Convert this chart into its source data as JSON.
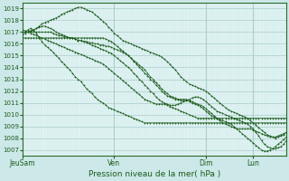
{
  "title": "Pression niveau de la mer( hPa )",
  "bg_color": "#cce8e8",
  "plot_bg_color": "#dff2f2",
  "grid_color_major": "#aacccc",
  "grid_color_minor": "#c8e4e4",
  "line_color": "#1a5c1a",
  "ylim": [
    1006.5,
    1019.5
  ],
  "yticks": [
    1007,
    1008,
    1009,
    1010,
    1011,
    1012,
    1013,
    1014,
    1015,
    1016,
    1017,
    1018,
    1019
  ],
  "xtick_labels": [
    "JeuSam",
    "Ven",
    "Dim",
    "Lun"
  ],
  "xtick_positions": [
    0,
    33,
    66,
    83
  ],
  "total_points": 96,
  "lines": [
    [
      1016.8,
      1016.9,
      1017.0,
      1017.1,
      1017.2,
      1017.3,
      1017.4,
      1017.5,
      1017.5,
      1017.4,
      1017.3,
      1017.2,
      1017.0,
      1016.9,
      1016.8,
      1016.7,
      1016.6,
      1016.5,
      1016.5,
      1016.4,
      1016.3,
      1016.3,
      1016.2,
      1016.2,
      1016.1,
      1016.1,
      1016.0,
      1016.0,
      1015.9,
      1015.9,
      1015.8,
      1015.8,
      1015.7,
      1015.6,
      1015.5,
      1015.4,
      1015.3,
      1015.2,
      1015.0,
      1014.8,
      1014.6,
      1014.4,
      1014.2,
      1014.0,
      1013.8,
      1013.5,
      1013.2,
      1013.0,
      1012.7,
      1012.5,
      1012.2,
      1012.0,
      1011.8,
      1011.6,
      1011.5,
      1011.4,
      1011.3,
      1011.2,
      1011.2,
      1011.2,
      1011.3,
      1011.4,
      1011.5,
      1011.5,
      1011.4,
      1011.3,
      1011.1,
      1010.9,
      1010.7,
      1010.5,
      1010.3,
      1010.2,
      1010.1,
      1010.0,
      1009.9,
      1009.8,
      1009.7,
      1009.6,
      1009.5,
      1009.4,
      1009.3,
      1009.2,
      1009.0,
      1008.8,
      1008.5,
      1008.2,
      1007.8,
      1007.5,
      1007.3,
      1007.2,
      1007.1,
      1007.1,
      1007.2,
      1007.3,
      1007.5,
      1007.8
    ],
    [
      1017.0,
      1017.0,
      1017.0,
      1017.1,
      1017.2,
      1017.3,
      1017.5,
      1017.7,
      1017.8,
      1017.9,
      1018.0,
      1018.1,
      1018.2,
      1018.3,
      1018.5,
      1018.6,
      1018.7,
      1018.8,
      1018.9,
      1019.0,
      1019.1,
      1019.1,
      1019.0,
      1018.9,
      1018.8,
      1018.7,
      1018.5,
      1018.3,
      1018.1,
      1017.9,
      1017.7,
      1017.4,
      1017.2,
      1016.9,
      1016.7,
      1016.5,
      1016.3,
      1016.2,
      1016.1,
      1016.0,
      1015.9,
      1015.8,
      1015.7,
      1015.6,
      1015.5,
      1015.4,
      1015.3,
      1015.2,
      1015.1,
      1015.0,
      1014.9,
      1014.7,
      1014.5,
      1014.3,
      1014.0,
      1013.8,
      1013.5,
      1013.2,
      1013.0,
      1012.8,
      1012.6,
      1012.5,
      1012.4,
      1012.3,
      1012.2,
      1012.1,
      1012.0,
      1011.8,
      1011.6,
      1011.4,
      1011.2,
      1011.0,
      1010.8,
      1010.6,
      1010.4,
      1010.3,
      1010.2,
      1010.1,
      1010.0,
      1009.9,
      1009.8,
      1009.7,
      1009.5,
      1009.3,
      1009.1,
      1008.9,
      1008.7,
      1008.5,
      1008.3,
      1008.2,
      1008.1,
      1008.0,
      1008.1,
      1008.2,
      1008.3,
      1008.5
    ],
    [
      1017.2,
      1017.1,
      1017.0,
      1016.9,
      1016.8,
      1016.7,
      1016.6,
      1016.5,
      1016.4,
      1016.3,
      1016.2,
      1016.1,
      1016.0,
      1015.9,
      1015.8,
      1015.7,
      1015.6,
      1015.5,
      1015.4,
      1015.3,
      1015.2,
      1015.1,
      1015.0,
      1014.9,
      1014.8,
      1014.7,
      1014.6,
      1014.5,
      1014.4,
      1014.3,
      1014.1,
      1013.9,
      1013.7,
      1013.5,
      1013.3,
      1013.1,
      1012.9,
      1012.7,
      1012.5,
      1012.3,
      1012.1,
      1011.9,
      1011.7,
      1011.5,
      1011.3,
      1011.2,
      1011.1,
      1011.0,
      1010.9,
      1010.9,
      1010.9,
      1010.9,
      1010.8,
      1010.7,
      1010.6,
      1010.5,
      1010.4,
      1010.3,
      1010.2,
      1010.1,
      1010.0,
      1009.9,
      1009.8,
      1009.7,
      1009.7,
      1009.7,
      1009.7,
      1009.7,
      1009.7,
      1009.7,
      1009.7,
      1009.7,
      1009.7,
      1009.7,
      1009.7,
      1009.7,
      1009.7,
      1009.7,
      1009.7,
      1009.7,
      1009.7,
      1009.7,
      1009.7,
      1009.7,
      1009.7,
      1009.7,
      1009.7,
      1009.7,
      1009.7,
      1009.7,
      1009.7,
      1009.7,
      1009.7,
      1009.7,
      1009.7,
      1009.7
    ],
    [
      1017.0,
      1017.0,
      1017.0,
      1017.0,
      1017.0,
      1017.0,
      1017.0,
      1017.0,
      1017.0,
      1017.0,
      1017.0,
      1016.9,
      1016.8,
      1016.7,
      1016.7,
      1016.6,
      1016.6,
      1016.5,
      1016.5,
      1016.4,
      1016.3,
      1016.3,
      1016.2,
      1016.1,
      1016.0,
      1015.9,
      1015.8,
      1015.7,
      1015.6,
      1015.5,
      1015.4,
      1015.3,
      1015.2,
      1015.0,
      1014.8,
      1014.6,
      1014.4,
      1014.2,
      1014.0,
      1013.8,
      1013.5,
      1013.3,
      1013.0,
      1012.8,
      1012.5,
      1012.3,
      1012.0,
      1011.8,
      1011.5,
      1011.3,
      1011.1,
      1011.0,
      1010.9,
      1010.8,
      1010.8,
      1010.8,
      1010.9,
      1011.0,
      1011.1,
      1011.2,
      1011.1,
      1011.0,
      1010.9,
      1010.8,
      1010.7,
      1010.5,
      1010.3,
      1010.1,
      1009.9,
      1009.8,
      1009.7,
      1009.6,
      1009.5,
      1009.4,
      1009.3,
      1009.2,
      1009.0,
      1008.8,
      1008.6,
      1008.4,
      1008.2,
      1008.0,
      1007.8,
      1007.6,
      1007.4,
      1007.2,
      1007.0,
      1006.9,
      1006.9,
      1007.0,
      1007.1,
      1007.3,
      1007.5,
      1007.7,
      1007.9,
      1008.1
    ],
    [
      1016.5,
      1016.5,
      1016.5,
      1016.5,
      1016.5,
      1016.5,
      1016.5,
      1016.5,
      1016.5,
      1016.5,
      1016.5,
      1016.5,
      1016.5,
      1016.5,
      1016.5,
      1016.5,
      1016.5,
      1016.5,
      1016.5,
      1016.5,
      1016.5,
      1016.5,
      1016.5,
      1016.5,
      1016.5,
      1016.5,
      1016.5,
      1016.5,
      1016.5,
      1016.5,
      1016.4,
      1016.3,
      1016.2,
      1016.0,
      1015.8,
      1015.6,
      1015.4,
      1015.2,
      1015.0,
      1014.8,
      1014.5,
      1014.3,
      1014.0,
      1013.8,
      1013.5,
      1013.3,
      1013.0,
      1012.8,
      1012.5,
      1012.3,
      1012.0,
      1011.8,
      1011.6,
      1011.5,
      1011.4,
      1011.3,
      1011.3,
      1011.3,
      1011.3,
      1011.3,
      1011.2,
      1011.1,
      1011.0,
      1010.9,
      1010.8,
      1010.7,
      1010.5,
      1010.3,
      1010.1,
      1009.9,
      1009.7,
      1009.5,
      1009.3,
      1009.2,
      1009.1,
      1009.0,
      1008.9,
      1008.8,
      1008.8,
      1008.8,
      1008.8,
      1008.8,
      1008.8,
      1008.7,
      1008.6,
      1008.5,
      1008.4,
      1008.3,
      1008.2,
      1008.1,
      1008.1,
      1008.1,
      1008.2,
      1008.3,
      1008.4,
      1008.5
    ],
    [
      1017.0,
      1017.0,
      1017.2,
      1017.3,
      1017.1,
      1016.9,
      1016.5,
      1016.2,
      1015.9,
      1015.7,
      1015.5,
      1015.3,
      1015.0,
      1014.8,
      1014.5,
      1014.3,
      1014.0,
      1013.8,
      1013.5,
      1013.2,
      1013.0,
      1012.8,
      1012.5,
      1012.2,
      1012.0,
      1011.8,
      1011.5,
      1011.3,
      1011.1,
      1011.0,
      1010.8,
      1010.6,
      1010.5,
      1010.4,
      1010.3,
      1010.2,
      1010.1,
      1010.0,
      1009.9,
      1009.8,
      1009.7,
      1009.6,
      1009.5,
      1009.4,
      1009.3,
      1009.3,
      1009.3,
      1009.3,
      1009.3,
      1009.3,
      1009.3,
      1009.3,
      1009.3,
      1009.3,
      1009.3,
      1009.3,
      1009.3,
      1009.3,
      1009.3,
      1009.3,
      1009.3,
      1009.3,
      1009.3,
      1009.3,
      1009.3,
      1009.3,
      1009.3,
      1009.3,
      1009.3,
      1009.3,
      1009.3,
      1009.3,
      1009.3,
      1009.3,
      1009.3,
      1009.3,
      1009.3,
      1009.3,
      1009.3,
      1009.3,
      1009.3,
      1009.3,
      1009.3,
      1009.3,
      1009.3,
      1009.3,
      1009.3,
      1009.3,
      1009.3,
      1009.3,
      1009.3,
      1009.3,
      1009.3,
      1009.3,
      1009.3,
      1009.3
    ]
  ]
}
